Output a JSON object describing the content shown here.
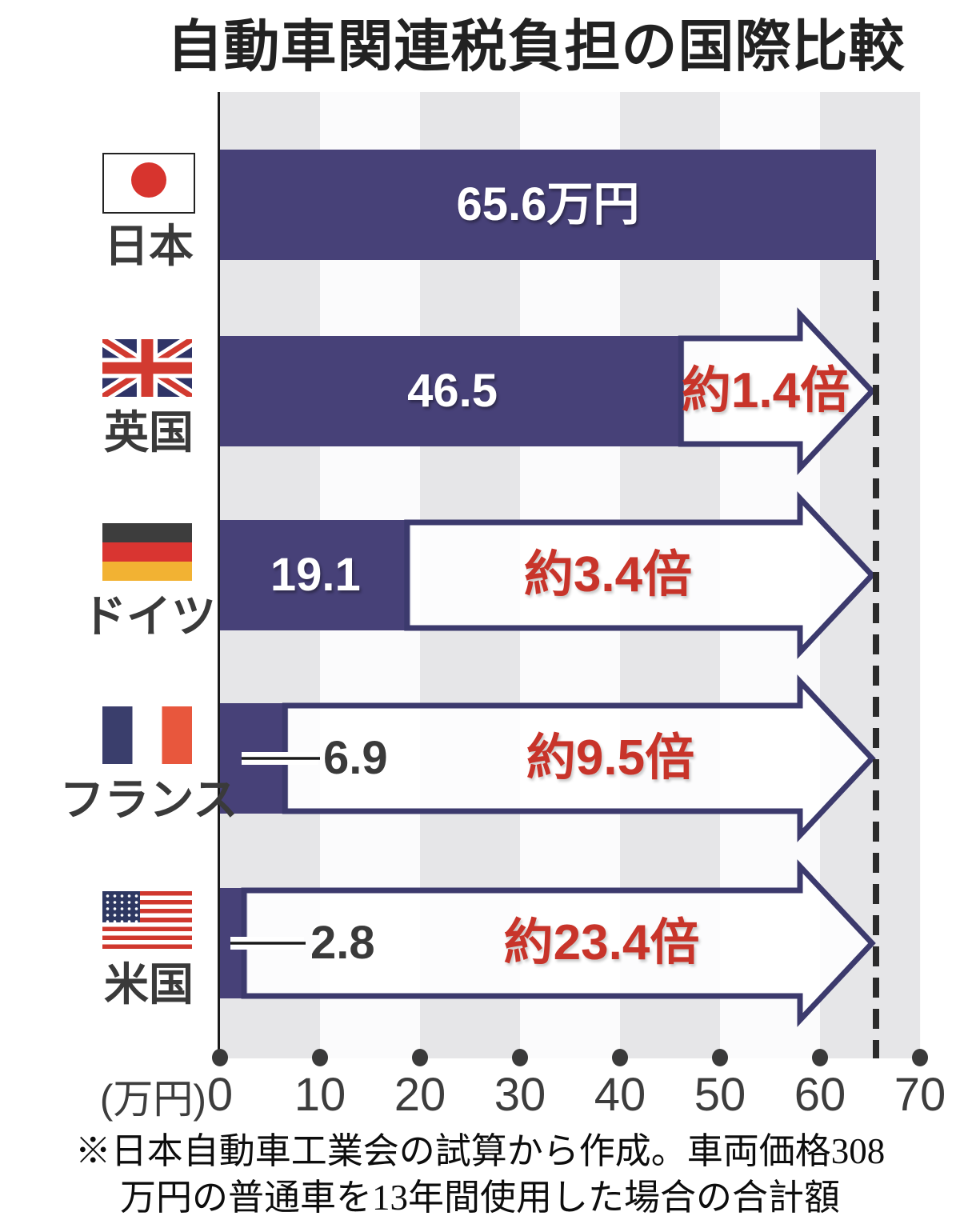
{
  "title": "自動車関連税負担の国際比較",
  "chart_data": {
    "type": "bar",
    "orientation": "horizontal",
    "unit": "万円",
    "xlabel": "(万円)",
    "xlim": [
      0,
      70
    ],
    "x_ticks": [
      0,
      10,
      20,
      30,
      40,
      50,
      60,
      70
    ],
    "grid": "alternating vertical decade stripes",
    "legend_position": "none",
    "reference_line": {
      "value": 65.6,
      "style": "dashed",
      "meaning": "日本の税負担額"
    },
    "series": [
      {
        "country": "日本",
        "flag": "japan-flag",
        "value": 65.6,
        "value_label": "65.6万円",
        "ratio_label": ""
      },
      {
        "country": "英国",
        "flag": "uk-flag",
        "value": 46.5,
        "value_label": "46.5",
        "ratio_label": "約1.4倍"
      },
      {
        "country": "ドイツ",
        "flag": "germany-flag",
        "value": 19.1,
        "value_label": "19.1",
        "ratio_label": "約3.4倍"
      },
      {
        "country": "フランス",
        "flag": "france-flag",
        "value": 6.9,
        "value_label": "6.9",
        "ratio_label": "約9.5倍"
      },
      {
        "country": "米国",
        "flag": "usa-flag",
        "value": 2.8,
        "value_label": "2.8",
        "ratio_label": "約23.4倍"
      }
    ],
    "title": "自動車関連税負担の国際比較",
    "footnote": "※日本自動車工業会の試算から作成。車両価格308万円の普通車を13年間使用した場合の合計額"
  },
  "axis": {
    "unit_label": "(万円)",
    "ticks": [
      "0",
      "10",
      "20",
      "30",
      "40",
      "50",
      "60",
      "70"
    ]
  },
  "footnote": {
    "line1": "※日本自動車工業会の試算から作成。車両価格308",
    "line2": "万円の普通車を13年間使用した場合の合計額"
  },
  "colors": {
    "bar_navy": "#474178",
    "arrow_border_navy": "#3c3a6d",
    "ratio_red": "#c8342a",
    "stripe_gray": "#e6e6e8",
    "dashed_line": "#2b2b2b",
    "japan_flag_red": "#d7342e"
  }
}
